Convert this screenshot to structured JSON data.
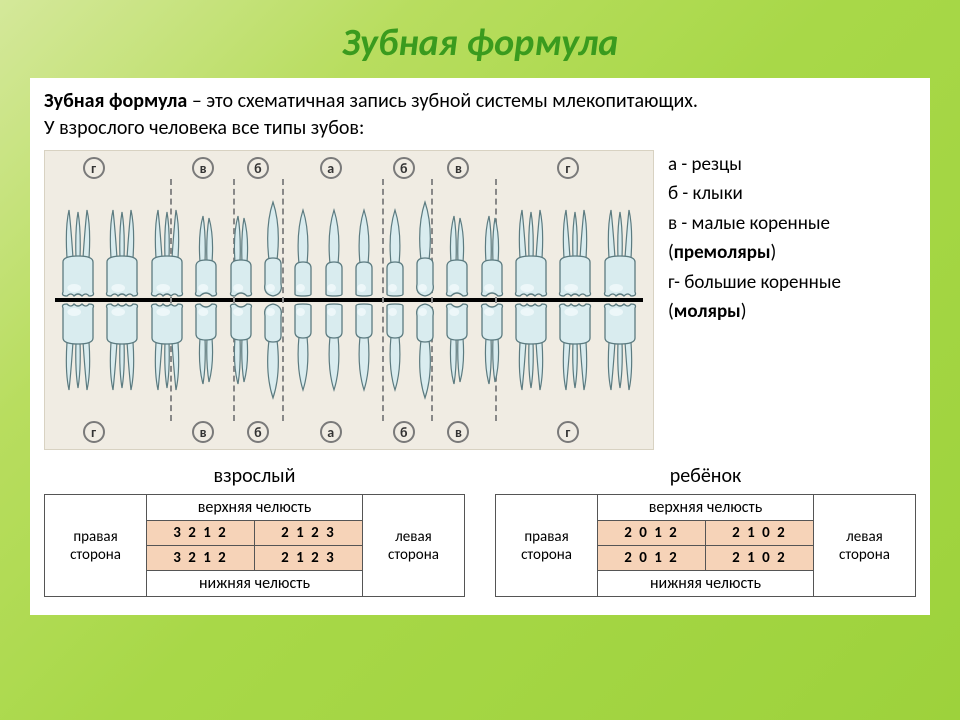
{
  "title": "Зубная формула",
  "definition": {
    "bold": "Зубная формула",
    "rest": " – это схематичная запись зубной системы млекопитающих.",
    "line2": "У  взрослого человека все типы зубов:"
  },
  "diagram": {
    "background": "#f0ece3",
    "border": "#d8d2c2",
    "midline_color": "#000000",
    "tooth_fill": "#d9ecef",
    "tooth_stroke": "#5c7b80",
    "tooth_highlight": "#f5fcfd",
    "group_labels": [
      "г",
      "в",
      "б",
      "а",
      "б",
      "в",
      "г"
    ],
    "group_positions_pct": [
      8,
      26,
      35,
      47,
      59,
      68,
      86
    ],
    "dash_positions_pct": [
      20.5,
      31,
      39,
      55.5,
      63.5,
      74
    ],
    "upper_counts": [
      3,
      2,
      1,
      2,
      2,
      1,
      2,
      3
    ],
    "lower_counts": [
      3,
      2,
      1,
      2,
      2,
      1,
      2,
      3
    ],
    "tooth_types": [
      "molar",
      "molar",
      "molar",
      "premolar",
      "premolar",
      "canine",
      "incisor",
      "incisor",
      "incisor",
      "incisor",
      "canine",
      "premolar",
      "premolar",
      "molar",
      "molar",
      "molar"
    ]
  },
  "legend": {
    "a": "а -   резцы",
    "b": "б  - клыки",
    "v": "в  - малые коренные",
    "v_paren": "(премоляры)",
    "g": "г- большие коренные",
    "g_paren": "(моляры)"
  },
  "tables": {
    "adult": {
      "title": "взрослый",
      "top_jaw": "верхняя челюсть",
      "bottom_jaw": "нижняя челюсть",
      "right_side_l1": "правая",
      "right_side_l2": "сторона",
      "left_side_l1": "левая",
      "left_side_l2": "сторона",
      "row1_left": "3 2 1 2",
      "row1_right": "2 1 2 3",
      "row2_left": "3 2 1 2",
      "row2_right": "2 1 2 3"
    },
    "child": {
      "title": "ребёнок",
      "top_jaw": "верхняя челюсть",
      "bottom_jaw": "нижняя челюсть",
      "right_side_l1": "правая",
      "right_side_l2": "сторона",
      "left_side_l1": "левая",
      "left_side_l2": "сторона",
      "row1_left": "2 0 1 2",
      "row1_right": "2 1 0 2",
      "row2_left": "2 0 1 2",
      "row2_right": "2 1 0 2"
    }
  },
  "colors": {
    "title": "#3a9b1e",
    "num_cell_bg": "#f6d3b8",
    "table_border": "#555555"
  }
}
